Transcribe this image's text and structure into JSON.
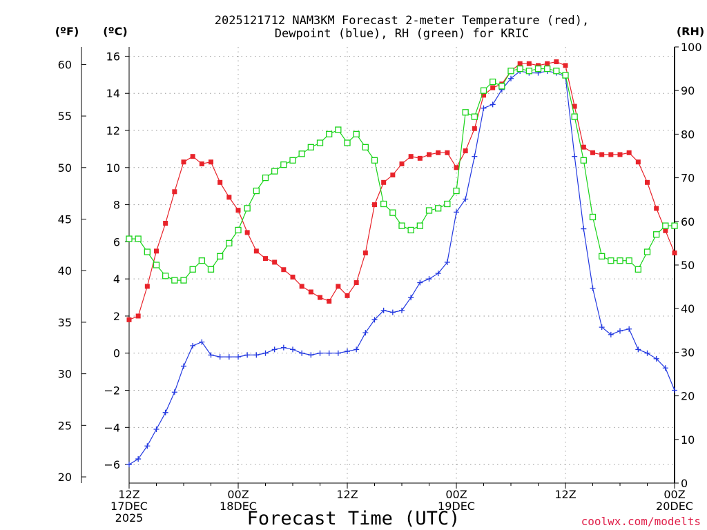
{
  "chart_data": {
    "type": "line",
    "title_lines": [
      "2025121712 NAM3KM Forecast 2-meter Temperature (red),",
      "Dewpoint (blue), RH (green) for KRIC"
    ],
    "xlabel": "Forecast Time (UTC)",
    "credit": "coolwx.com/modelts",
    "units": {
      "fahrenheit": "(ºF)",
      "celsius": "(ºC)",
      "rh": "(RH)"
    },
    "x_hours_range": [
      0,
      60
    ],
    "x_ticks": [
      {
        "hour": 0,
        "lines": [
          "12Z",
          "17DEC",
          "2025"
        ]
      },
      {
        "hour": 12,
        "lines": [
          "00Z",
          "18DEC"
        ]
      },
      {
        "hour": 24,
        "lines": [
          "12Z"
        ]
      },
      {
        "hour": 36,
        "lines": [
          "00Z",
          "19DEC"
        ]
      },
      {
        "hour": 48,
        "lines": [
          "12Z"
        ]
      },
      {
        "hour": 60,
        "lines": [
          "00Z",
          "20DEC"
        ]
      }
    ],
    "celsius_range": [
      -7,
      16.5
    ],
    "celsius_ticks": [
      "-6",
      "-4",
      "-2",
      "0",
      "2",
      "4",
      "6",
      "8",
      "10",
      "12",
      "14",
      "16"
    ],
    "fahrenheit_ticks": [
      "20",
      "25",
      "30",
      "35",
      "40",
      "45",
      "50",
      "55",
      "60"
    ],
    "rh_range": [
      0,
      100
    ],
    "rh_ticks": [
      "0",
      "10",
      "20",
      "30",
      "40",
      "50",
      "60",
      "70",
      "80",
      "90",
      "100"
    ],
    "grid": true,
    "hours": [
      0,
      1,
      2,
      3,
      4,
      5,
      6,
      7,
      8,
      9,
      10,
      11,
      12,
      13,
      14,
      15,
      16,
      17,
      18,
      19,
      20,
      21,
      22,
      23,
      24,
      25,
      26,
      27,
      28,
      29,
      30,
      31,
      32,
      33,
      34,
      35,
      36,
      37,
      38,
      39,
      40,
      41,
      42,
      43,
      44,
      45,
      46,
      47,
      48,
      49,
      50,
      51,
      52,
      53,
      54,
      55,
      56,
      57,
      58,
      59,
      60
    ],
    "series": [
      {
        "name": "2-meter Temperature",
        "axis": "celsius",
        "color": "#e8232a",
        "marker": "filled-square",
        "values": [
          1.8,
          2.0,
          3.6,
          5.5,
          7.0,
          8.7,
          10.3,
          10.6,
          10.2,
          10.3,
          9.2,
          8.4,
          7.7,
          6.5,
          5.5,
          5.1,
          4.9,
          4.5,
          4.1,
          3.6,
          3.3,
          3.0,
          2.8,
          3.6,
          3.1,
          3.8,
          5.4,
          8.0,
          9.2,
          9.6,
          10.2,
          10.6,
          10.5,
          10.7,
          10.8,
          10.8,
          10.0,
          10.9,
          12.1,
          13.9,
          14.3,
          14.5,
          15.2,
          15.6,
          15.6,
          15.5,
          15.6,
          15.7,
          15.5,
          13.3,
          11.1,
          10.8,
          10.7,
          10.7,
          10.7,
          10.8,
          10.3,
          9.2,
          7.8,
          6.6,
          5.4
        ]
      },
      {
        "name": "Dewpoint",
        "axis": "celsius",
        "color": "#2238e0",
        "marker": "plus",
        "values": [
          -6.0,
          -5.7,
          -5.0,
          -4.1,
          -3.2,
          -2.1,
          -0.7,
          0.4,
          0.6,
          -0.1,
          -0.2,
          -0.2,
          -0.2,
          -0.1,
          -0.1,
          0.0,
          0.2,
          0.3,
          0.2,
          0.0,
          -0.1,
          0.0,
          0.0,
          0.0,
          0.1,
          0.2,
          1.1,
          1.8,
          2.3,
          2.2,
          2.3,
          3.0,
          3.8,
          4.0,
          4.3,
          4.9,
          7.6,
          8.3,
          10.6,
          13.2,
          13.4,
          14.2,
          14.8,
          15.2,
          15.1,
          15.1,
          15.2,
          15.1,
          14.9,
          10.6,
          6.7,
          3.5,
          1.4,
          1.0,
          1.2,
          1.3,
          0.2,
          0.0,
          -0.3,
          -0.8,
          -2.0
        ]
      },
      {
        "name": "Relative Humidity",
        "axis": "rh",
        "color": "#1ad31a",
        "marker": "open-square",
        "values": [
          56,
          56,
          53,
          50,
          47.5,
          46.5,
          46.5,
          49,
          51,
          49,
          52,
          55,
          58,
          63,
          67,
          70,
          71.5,
          73,
          74,
          75.5,
          77,
          78,
          80,
          81,
          78,
          80,
          77,
          74,
          64,
          62,
          59,
          58,
          59,
          62.5,
          63,
          64,
          67,
          85,
          84,
          90,
          92,
          91,
          94.5,
          95,
          94.5,
          95,
          95,
          94.5,
          93.5,
          84,
          74,
          61,
          52,
          51,
          51,
          51,
          49,
          53,
          57,
          59,
          59
        ]
      }
    ]
  }
}
